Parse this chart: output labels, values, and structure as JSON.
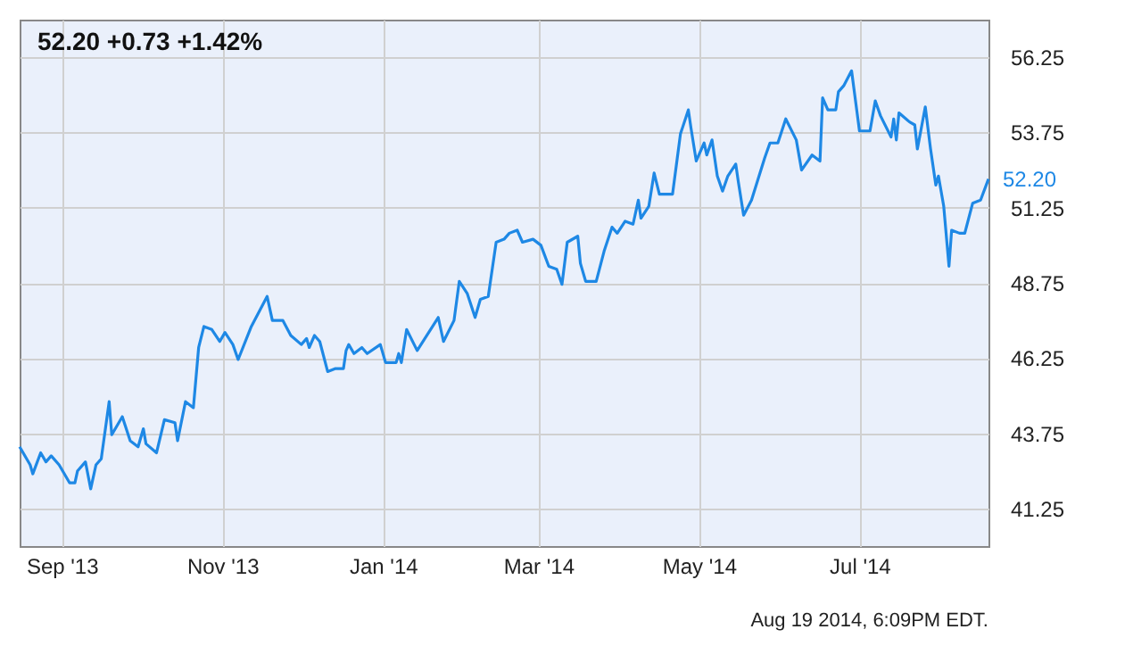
{
  "chart_data": {
    "type": "line",
    "title": "52.20  +0.73  +1.42%",
    "annotations": [
      {
        "text": "52.20",
        "x": "2014-08-19",
        "y": 52.2
      },
      "Aug 19 2014, 6:09PM EDT."
    ],
    "x": [
      "2013-08-16",
      "2013-08-20",
      "2013-08-21",
      "2013-08-24",
      "2013-08-26",
      "2013-08-28",
      "2013-08-31",
      "2013-09-04",
      "2013-09-06",
      "2013-09-07",
      "2013-09-10",
      "2013-09-12",
      "2013-09-14",
      "2013-09-16",
      "2013-09-19",
      "2013-09-20",
      "2013-09-24",
      "2013-09-27",
      "2013-09-30",
      "2013-10-02",
      "2013-10-03",
      "2013-10-07",
      "2013-10-10",
      "2013-10-14",
      "2013-10-15",
      "2013-10-18",
      "2013-10-21",
      "2013-10-23",
      "2013-10-25",
      "2013-10-28",
      "2013-10-31",
      "2013-11-02",
      "2013-11-05",
      "2013-11-07",
      "2013-11-12",
      "2013-11-18",
      "2013-11-20",
      "2013-11-24",
      "2013-11-27",
      "2013-12-01",
      "2013-12-03",
      "2013-12-04",
      "2013-12-06",
      "2013-12-08",
      "2013-12-11",
      "2013-12-14",
      "2013-12-17",
      "2013-12-18",
      "2013-12-19",
      "2013-12-21",
      "2013-12-24",
      "2013-12-26",
      "2013-12-31",
      "2014-01-02",
      "2014-01-06",
      "2014-01-07",
      "2014-01-08",
      "2014-01-10",
      "2014-01-14",
      "2014-01-22",
      "2014-01-24",
      "2014-01-28",
      "2014-01-30",
      "2014-02-02",
      "2014-02-05",
      "2014-02-07",
      "2014-02-10",
      "2014-02-13",
      "2014-02-16",
      "2014-02-18",
      "2014-02-21",
      "2014-02-23",
      "2014-02-27",
      "2014-03-02",
      "2014-03-05",
      "2014-03-08",
      "2014-03-10",
      "2014-03-12",
      "2014-03-16",
      "2014-03-17",
      "2014-03-19",
      "2014-03-23",
      "2014-03-26",
      "2014-03-29",
      "2014-03-31",
      "2014-04-03",
      "2014-04-06",
      "2014-04-08",
      "2014-04-09",
      "2014-04-12",
      "2014-04-14",
      "2014-04-16",
      "2014-04-21",
      "2014-04-24",
      "2014-04-27",
      "2014-04-28",
      "2014-04-30",
      "2014-05-03",
      "2014-05-04",
      "2014-05-06",
      "2014-05-08",
      "2014-05-10",
      "2014-05-12",
      "2014-05-15",
      "2014-05-16",
      "2014-05-18",
      "2014-05-21",
      "2014-05-26",
      "2014-05-28",
      "2014-05-31",
      "2014-06-03",
      "2014-06-07",
      "2014-06-09",
      "2014-06-13",
      "2014-06-16",
      "2014-06-17",
      "2014-06-19",
      "2014-06-22",
      "2014-06-23",
      "2014-06-25",
      "2014-06-28",
      "2014-07-01",
      "2014-07-05",
      "2014-07-07",
      "2014-07-09",
      "2014-07-13",
      "2014-07-14",
      "2014-07-15",
      "2014-07-16",
      "2014-07-20",
      "2014-07-22",
      "2014-07-23",
      "2014-07-26",
      "2014-07-28",
      "2014-07-30",
      "2014-07-31",
      "2014-08-02",
      "2014-08-04",
      "2014-08-05",
      "2014-08-08",
      "2014-08-10",
      "2014-08-13",
      "2014-08-16",
      "2014-08-19"
    ],
    "series": [
      {
        "color": "#1e88e5",
        "values": [
          43.3,
          42.7,
          42.4,
          43.1,
          42.8,
          43.0,
          42.7,
          42.1,
          42.1,
          42.5,
          42.8,
          41.9,
          42.7,
          42.9,
          44.8,
          43.7,
          44.3,
          43.5,
          43.3,
          43.9,
          43.4,
          43.1,
          44.2,
          44.1,
          43.5,
          44.8,
          44.6,
          46.6,
          47.3,
          47.2,
          46.8,
          47.1,
          46.7,
          46.2,
          47.3,
          48.3,
          47.5,
          47.5,
          47.0,
          46.7,
          46.9,
          46.6,
          47.0,
          46.8,
          45.8,
          45.9,
          45.9,
          46.5,
          46.7,
          46.4,
          46.6,
          46.4,
          46.7,
          46.1,
          46.1,
          46.4,
          46.1,
          47.2,
          46.5,
          47.6,
          46.8,
          47.5,
          48.8,
          48.4,
          47.6,
          48.2,
          48.3,
          50.1,
          50.2,
          50.4,
          50.5,
          50.1,
          50.2,
          50.0,
          49.3,
          49.2,
          48.7,
          50.1,
          50.3,
          49.4,
          48.8,
          48.8,
          49.8,
          50.6,
          50.4,
          50.8,
          50.7,
          51.5,
          50.9,
          51.3,
          52.4,
          51.7,
          51.7,
          53.7,
          54.5,
          53.9,
          52.8,
          53.4,
          53.0,
          53.5,
          52.3,
          51.8,
          52.3,
          52.7,
          52.1,
          51.0,
          51.5,
          52.9,
          53.4,
          53.4,
          54.2,
          53.5,
          52.5,
          53.0,
          52.8,
          54.9,
          54.5,
          54.5,
          55.1,
          55.3,
          55.8,
          53.8,
          53.8,
          54.8,
          54.3,
          53.6,
          54.2,
          53.5,
          54.4,
          54.1,
          54.0,
          53.2,
          54.6,
          53.2,
          52.0,
          52.3,
          51.3,
          49.3,
          50.5,
          50.4,
          50.4,
          51.4,
          51.5,
          52.2
        ]
      }
    ],
    "xlim": [
      "2013-08-16",
      "2014-08-19"
    ],
    "xticks": [
      {
        "value": "2013-09-01",
        "label": "Sep '13"
      },
      {
        "value": "2013-11-01",
        "label": "Nov '13"
      },
      {
        "value": "2014-01-01",
        "label": "Jan '14"
      },
      {
        "value": "2014-03-01",
        "label": "Mar '14"
      },
      {
        "value": "2014-05-01",
        "label": "May '14"
      },
      {
        "value": "2014-07-01",
        "label": "Jul '14"
      }
    ],
    "ylim": [
      40,
      57.5
    ],
    "yticks": [
      41.25,
      43.75,
      46.25,
      48.75,
      51.25,
      53.75,
      56.25
    ],
    "grid": true,
    "line_style": "solid"
  }
}
